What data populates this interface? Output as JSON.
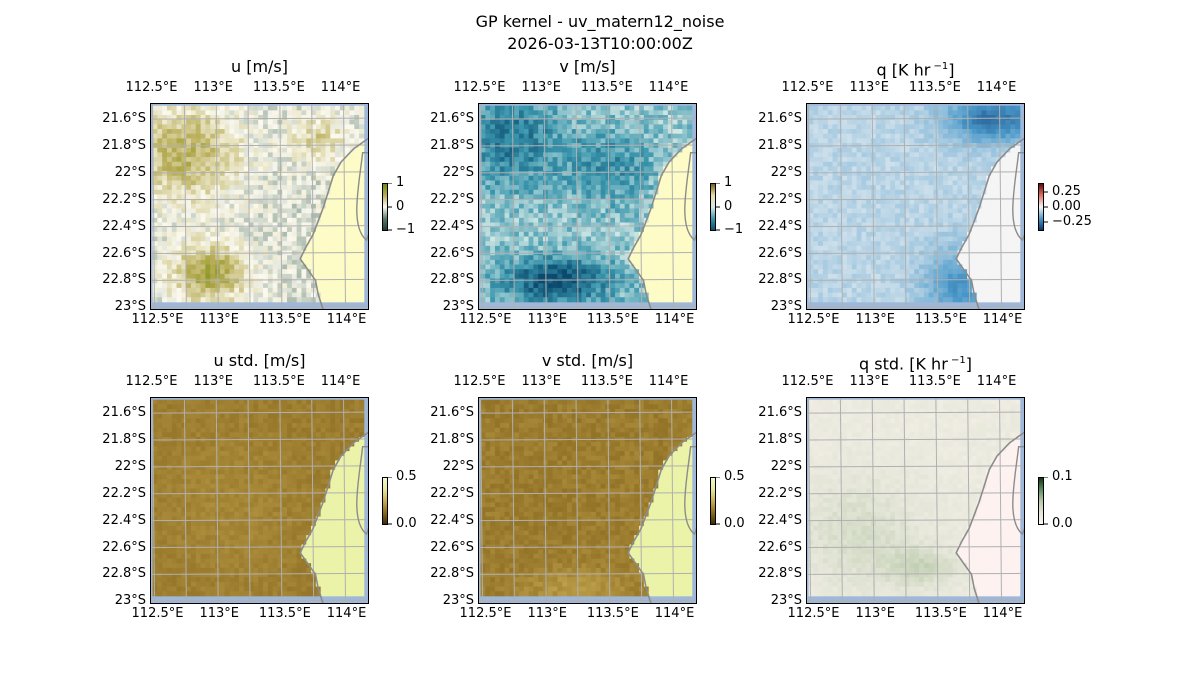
{
  "title": "GP kernel - uv_matern12_noise",
  "timestamp": "2026-03-13T10:00:00Z",
  "colors": {
    "land": "#fdfbc6",
    "ocean_border": "#9fb7d8",
    "grid": "#b0b0b0",
    "coast": "#8c8c8c"
  },
  "chart_data": [
    {
      "id": "u",
      "type": "heatmap",
      "title": "u [m/s]",
      "xlabels": [
        "112.5°E",
        "113°E",
        "113.5°E",
        "114°E"
      ],
      "ylabels": [
        "21.6°S",
        "21.8°S",
        "22°S",
        "22.2°S",
        "22.4°S",
        "22.6°S",
        "22.8°S",
        "23°S"
      ],
      "colorbar": {
        "ticks": [
          "1",
          "0",
          "−1"
        ],
        "range": [
          -1,
          1
        ],
        "colormap": [
          "#1a3a3c",
          "#5a7a6a",
          "#fcfaf0",
          "#b8ad57",
          "#6e8a00"
        ]
      },
      "field": "u"
    },
    {
      "id": "v",
      "type": "heatmap",
      "title": "v [m/s]",
      "xlabels": [
        "112.5°E",
        "113°E",
        "113.5°E",
        "114°E"
      ],
      "ylabels": [
        "21.6°S",
        "21.8°S",
        "22°S",
        "22.2°S",
        "22.4°S",
        "22.6°S",
        "22.8°S",
        "23°S"
      ],
      "colorbar": {
        "ticks": [
          "1",
          "0",
          "−1"
        ],
        "range": [
          -1,
          1
        ],
        "colormap": [
          "#0b4a6e",
          "#3a96ad",
          "#d8ebe6",
          "#e8dca8",
          "#6b5a10"
        ]
      },
      "field": "v"
    },
    {
      "id": "q",
      "type": "heatmap",
      "title": "q [K hr",
      "title_sup": "−1",
      "title_end": "]",
      "xlabels": [
        "112.5°E",
        "113°E",
        "113.5°E",
        "114°E"
      ],
      "ylabels": [
        "21.6°S",
        "21.8°S",
        "22°S",
        "22.2°S",
        "22.4°S",
        "22.6°S",
        "22.8°S",
        "23°S"
      ],
      "colorbar": {
        "ticks": [
          "0.25",
          "0.00",
          "−0.25"
        ],
        "range": [
          -0.35,
          0.35
        ],
        "colormap": [
          "#08306b",
          "#4a98c9",
          "#f5f5f5",
          "#e07060",
          "#67000d"
        ]
      },
      "field": "q"
    },
    {
      "id": "u_std",
      "type": "heatmap",
      "title": "u std. [m/s]",
      "xlabels": [
        "112.5°E",
        "113°E",
        "113.5°E",
        "114°E"
      ],
      "ylabels": [
        "21.6°S",
        "21.8°S",
        "22°S",
        "22.2°S",
        "22.4°S",
        "22.6°S",
        "22.8°S",
        "23°S"
      ],
      "colorbar": {
        "ticks": [
          "0.5",
          "0.0"
        ],
        "range": [
          0,
          0.5
        ],
        "colormap": [
          "#3a2a05",
          "#8a6a20",
          "#c9ad55",
          "#e5e8a0",
          "#f6f8d0"
        ]
      },
      "field": "ustd"
    },
    {
      "id": "v_std",
      "type": "heatmap",
      "title": "v std. [m/s]",
      "xlabels": [
        "112.5°E",
        "113°E",
        "113.5°E",
        "114°E"
      ],
      "ylabels": [
        "21.6°S",
        "21.8°S",
        "22°S",
        "22.2°S",
        "22.4°S",
        "22.6°S",
        "22.8°S",
        "23°S"
      ],
      "colorbar": {
        "ticks": [
          "0.5",
          "0.0"
        ],
        "range": [
          0,
          0.5
        ],
        "colormap": [
          "#3a2a05",
          "#8a6a20",
          "#c9ad55",
          "#e5e8a0",
          "#f6f8d0"
        ]
      },
      "field": "vstd"
    },
    {
      "id": "q_std",
      "type": "heatmap",
      "title": "q std. [K hr",
      "title_sup": "−1",
      "title_end": "]",
      "xlabels": [
        "112.5°E",
        "113°E",
        "113.5°E",
        "114°E"
      ],
      "ylabels": [
        "21.6°S",
        "21.8°S",
        "22°S",
        "22.2°S",
        "22.4°S",
        "22.6°S",
        "22.8°S",
        "23°S"
      ],
      "colorbar": {
        "ticks": [
          "0.1",
          "0.0"
        ],
        "range": [
          0,
          0.12
        ],
        "colormap": [
          "#fdf4f0",
          "#e4e6d8",
          "#b8c8a8",
          "#5a8a60",
          "#103010"
        ]
      },
      "field": "qstd"
    }
  ]
}
